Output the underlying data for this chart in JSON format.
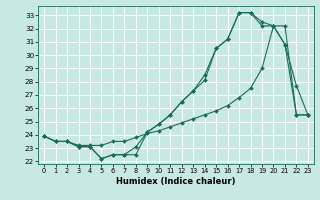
{
  "xlabel": "Humidex (Indice chaleur)",
  "bg_color": "#c8e8e2",
  "grid_color": "#ffffff",
  "line_color": "#1a6b5a",
  "xlim": [
    -0.5,
    23.5
  ],
  "ylim": [
    21.8,
    33.7
  ],
  "yticks": [
    22,
    23,
    24,
    25,
    26,
    27,
    28,
    29,
    30,
    31,
    32,
    33
  ],
  "xticks": [
    0,
    1,
    2,
    3,
    4,
    5,
    6,
    7,
    8,
    9,
    10,
    11,
    12,
    13,
    14,
    15,
    16,
    17,
    18,
    19,
    20,
    21,
    22,
    23
  ],
  "line1_x": [
    0,
    1,
    2,
    3,
    4,
    5,
    6,
    7,
    8,
    9,
    10,
    11,
    12,
    13,
    14,
    15,
    16,
    17,
    18,
    19,
    20,
    21,
    22,
    23
  ],
  "line1_y": [
    23.9,
    23.5,
    23.5,
    23.1,
    23.1,
    22.2,
    22.5,
    22.5,
    22.5,
    24.2,
    24.8,
    25.5,
    26.5,
    27.3,
    28.1,
    30.5,
    31.2,
    33.2,
    33.2,
    32.2,
    32.2,
    30.8,
    27.7,
    25.5
  ],
  "line2_x": [
    0,
    1,
    2,
    3,
    4,
    5,
    6,
    7,
    8,
    9,
    10,
    11,
    12,
    13,
    14,
    15,
    16,
    17,
    18,
    19,
    20,
    21,
    22,
    23
  ],
  "line2_y": [
    23.9,
    23.5,
    23.5,
    23.2,
    23.2,
    23.2,
    23.5,
    23.5,
    23.8,
    24.1,
    24.3,
    24.6,
    24.9,
    25.2,
    25.5,
    25.8,
    26.2,
    26.8,
    27.5,
    29.0,
    32.2,
    32.2,
    25.5,
    25.5
  ],
  "line3_x": [
    0,
    1,
    2,
    3,
    4,
    5,
    6,
    7,
    8,
    9,
    10,
    11,
    12,
    13,
    14,
    15,
    16,
    17,
    18,
    19,
    20,
    21,
    22,
    23
  ],
  "line3_y": [
    23.9,
    23.5,
    23.5,
    23.1,
    23.1,
    22.2,
    22.5,
    22.5,
    23.1,
    24.2,
    24.8,
    25.5,
    26.5,
    27.3,
    28.5,
    30.5,
    31.2,
    33.2,
    33.2,
    32.5,
    32.2,
    30.8,
    25.5,
    25.5
  ]
}
